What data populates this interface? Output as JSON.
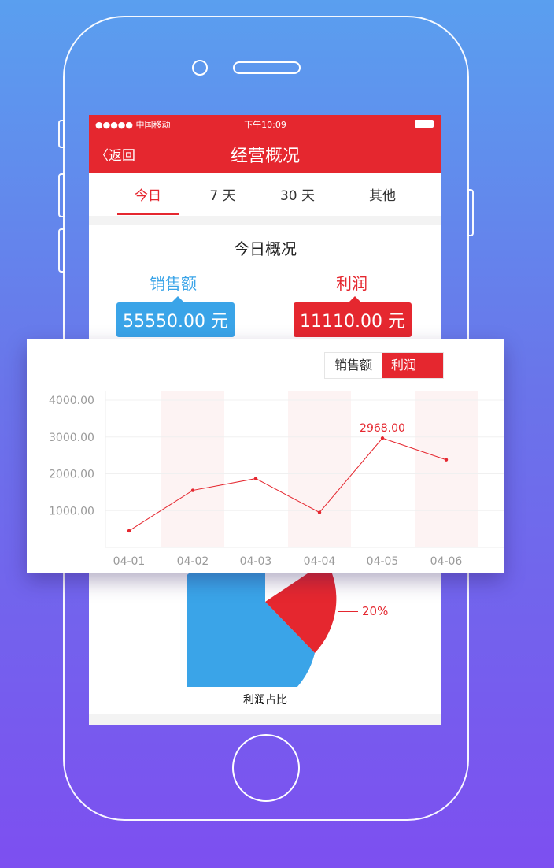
{
  "status_bar": {
    "carrier": "●●●●● 中国移动",
    "time": "下午10:09"
  },
  "nav": {
    "back_label": "〈返回",
    "title": "经营概况"
  },
  "tabs": [
    {
      "label": "今日",
      "active": true
    },
    {
      "label": "7 天"
    },
    {
      "label": "30 天"
    },
    {
      "label": "其他"
    }
  ],
  "overview": {
    "title": "今日概况",
    "sales_label": "销售额",
    "sales_value": "55550.00 元",
    "profit_label": "利润",
    "profit_value": "11110.00 元"
  },
  "colors": {
    "brand_red": "#e5272f",
    "sales_blue": "#3aa4e8"
  },
  "toggle": {
    "sales": "销售额",
    "profit": "利润"
  },
  "chart_data": {
    "type": "line",
    "categories": [
      "04-01",
      "04-02",
      "04-03",
      "04-04",
      "04-05",
      "04-06"
    ],
    "values": [
      450,
      1550,
      1870,
      950,
      2968,
      2380
    ],
    "y_ticks": [
      "4000.00",
      "3000.00",
      "2000.00",
      "1000.00"
    ],
    "annotation": "2968.00",
    "ylim": [
      0,
      4000
    ]
  },
  "pie": {
    "slices": [
      {
        "label": "20%",
        "value": 20,
        "color": "#e5272f"
      },
      {
        "value": 80,
        "color": "#3aa4e8"
      }
    ],
    "caption": "利润占比"
  }
}
